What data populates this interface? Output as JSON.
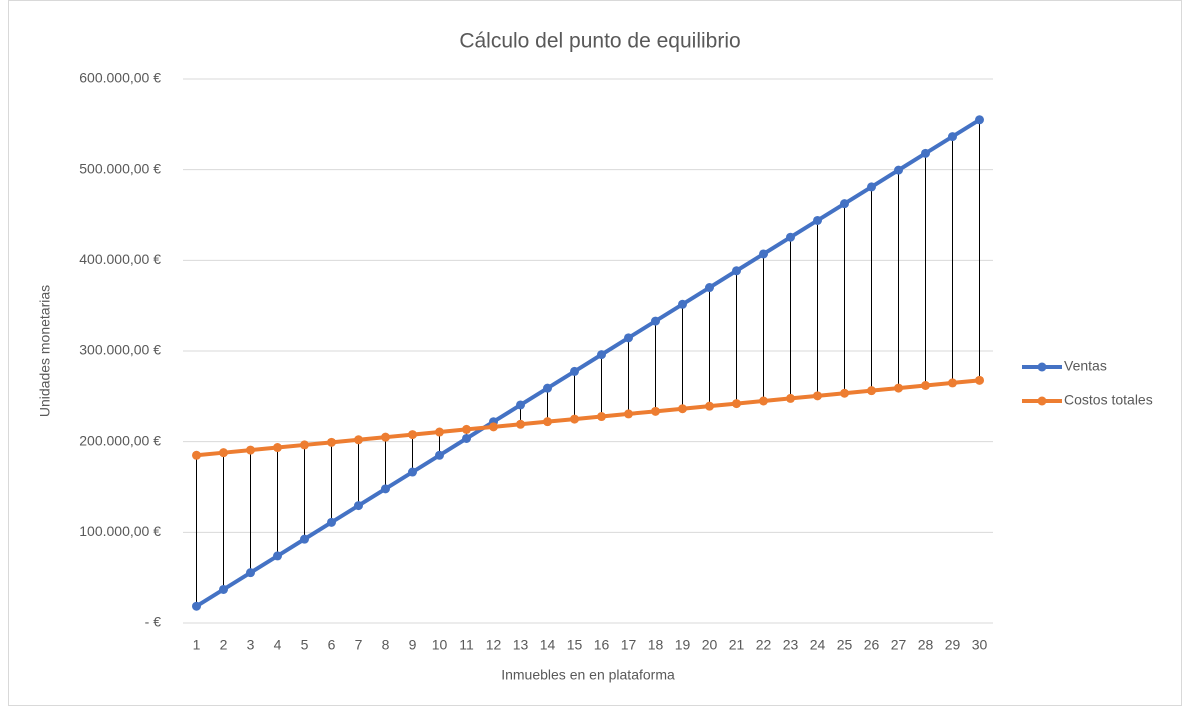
{
  "chart_data": {
    "type": "line",
    "title": "Cálculo del punto de equilibrio",
    "x_label": "Inmuebles en en plataforma",
    "y_label": "Unidades monetarias",
    "categories": [
      "1",
      "2",
      "3",
      "4",
      "5",
      "6",
      "7",
      "8",
      "9",
      "10",
      "11",
      "12",
      "13",
      "14",
      "15",
      "16",
      "17",
      "18",
      "19",
      "20",
      "21",
      "22",
      "23",
      "24",
      "25",
      "26",
      "27",
      "28",
      "29",
      "30"
    ],
    "series": [
      {
        "name": "Ventas",
        "color": "#4472c4",
        "values": [
          18500,
          37000,
          55500,
          74000,
          92500,
          111000,
          129500,
          148000,
          166500,
          185000,
          203500,
          222000,
          240500,
          259000,
          277500,
          296000,
          314500,
          333000,
          351500,
          370000,
          388500,
          407000,
          425500,
          444000,
          462500,
          481000,
          499500,
          518000,
          536500,
          555000
        ]
      },
      {
        "name": "Costos totales",
        "color": "#ed7d31",
        "values": [
          185000,
          187850,
          190700,
          193550,
          196400,
          199250,
          202100,
          204950,
          207800,
          210650,
          213500,
          216350,
          219200,
          222050,
          224900,
          227750,
          230600,
          233450,
          236300,
          239150,
          242000,
          244850,
          247700,
          250550,
          253400,
          256250,
          259100,
          261950,
          264800,
          267650
        ]
      }
    ],
    "ylim": [
      0,
      600000
    ],
    "yticks": [
      {
        "value": 0,
        "label": "-   €"
      },
      {
        "value": 100000,
        "label": "100.000,00 €"
      },
      {
        "value": 200000,
        "label": "200.000,00 €"
      },
      {
        "value": 300000,
        "label": "300.000,00 €"
      },
      {
        "value": 400000,
        "label": "400.000,00 €"
      },
      {
        "value": 500000,
        "label": "500.000,00 €"
      },
      {
        "value": 600000,
        "label": "600.000,00 €"
      }
    ],
    "grid": true,
    "drop_lines": true,
    "legend": "right"
  }
}
